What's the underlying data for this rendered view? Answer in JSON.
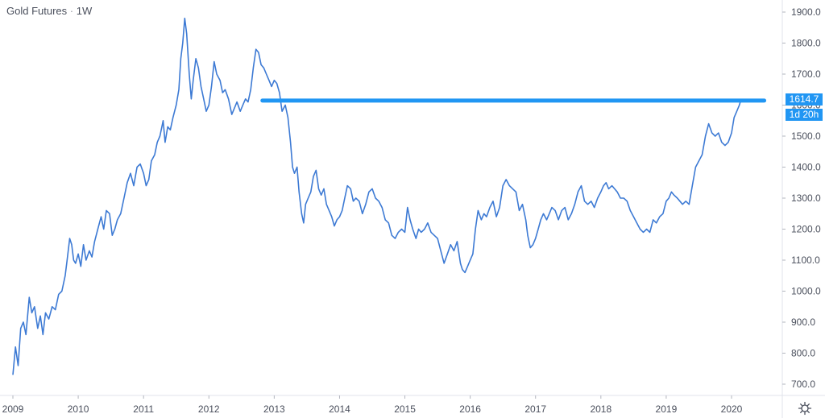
{
  "header": {
    "symbol": "Gold Futures",
    "separator": "·",
    "interval": "1W"
  },
  "colors": {
    "line": "#3d7ad4",
    "hline": "#2196f3",
    "badge": "#2196f3",
    "axis": "#e0e3eb",
    "text": "#4a4f5c"
  },
  "badges": {
    "price": "1614.7",
    "countdown": "1d 20h"
  },
  "settings_icon": "gear-icon",
  "chart_data": {
    "type": "line",
    "title": "Gold Futures · 1W",
    "xlabel": "",
    "ylabel": "",
    "ylim": [
      670,
      1930
    ],
    "xlim": [
      2009.0,
      2020.82
    ],
    "y_ticks": [
      700,
      800,
      900,
      1000,
      1100,
      1200,
      1300,
      1400,
      1500,
      1600,
      1700,
      1800,
      1900
    ],
    "y_tick_labels": [
      "700.0",
      "800.0",
      "900.0",
      "1000.0",
      "1100.0",
      "1200.0",
      "1300.0",
      "1400.0",
      "1500.0",
      "1600.0",
      "1700.0",
      "1800.0",
      "1900.0"
    ],
    "x_ticks": [
      2009,
      2010,
      2011,
      2012,
      2013,
      2014,
      2015,
      2016,
      2017,
      2018,
      2019,
      2020
    ],
    "x_tick_labels": [
      "2009",
      "2010",
      "2011",
      "2012",
      "2013",
      "2014",
      "2015",
      "2016",
      "2017",
      "2018",
      "2019",
      "2020"
    ],
    "grid": false,
    "series": [
      {
        "points": [
          [
            2009.0,
            730
          ],
          [
            2009.04,
            820
          ],
          [
            2009.08,
            760
          ],
          [
            2009.12,
            880
          ],
          [
            2009.16,
            900
          ],
          [
            2009.2,
            860
          ],
          [
            2009.25,
            980
          ],
          [
            2009.29,
            930
          ],
          [
            2009.33,
            950
          ],
          [
            2009.38,
            880
          ],
          [
            2009.42,
            920
          ],
          [
            2009.46,
            860
          ],
          [
            2009.5,
            930
          ],
          [
            2009.55,
            910
          ],
          [
            2009.6,
            950
          ],
          [
            2009.65,
            940
          ],
          [
            2009.7,
            990
          ],
          [
            2009.75,
            1000
          ],
          [
            2009.8,
            1050
          ],
          [
            2009.83,
            1100
          ],
          [
            2009.87,
            1170
          ],
          [
            2009.9,
            1150
          ],
          [
            2009.93,
            1100
          ],
          [
            2009.96,
            1090
          ],
          [
            2010.0,
            1120
          ],
          [
            2010.04,
            1080
          ],
          [
            2010.08,
            1150
          ],
          [
            2010.12,
            1100
          ],
          [
            2010.17,
            1130
          ],
          [
            2010.21,
            1110
          ],
          [
            2010.25,
            1160
          ],
          [
            2010.3,
            1200
          ],
          [
            2010.35,
            1240
          ],
          [
            2010.39,
            1200
          ],
          [
            2010.43,
            1260
          ],
          [
            2010.48,
            1250
          ],
          [
            2010.52,
            1180
          ],
          [
            2010.56,
            1200
          ],
          [
            2010.6,
            1230
          ],
          [
            2010.65,
            1250
          ],
          [
            2010.7,
            1300
          ],
          [
            2010.75,
            1350
          ],
          [
            2010.8,
            1380
          ],
          [
            2010.85,
            1340
          ],
          [
            2010.9,
            1400
          ],
          [
            2010.95,
            1410
          ],
          [
            2011.0,
            1380
          ],
          [
            2011.04,
            1340
          ],
          [
            2011.08,
            1360
          ],
          [
            2011.12,
            1420
          ],
          [
            2011.17,
            1440
          ],
          [
            2011.21,
            1480
          ],
          [
            2011.25,
            1500
          ],
          [
            2011.3,
            1550
          ],
          [
            2011.33,
            1480
          ],
          [
            2011.37,
            1530
          ],
          [
            2011.41,
            1520
          ],
          [
            2011.45,
            1560
          ],
          [
            2011.5,
            1600
          ],
          [
            2011.54,
            1650
          ],
          [
            2011.57,
            1750
          ],
          [
            2011.6,
            1800
          ],
          [
            2011.63,
            1880
          ],
          [
            2011.66,
            1830
          ],
          [
            2011.7,
            1700
          ],
          [
            2011.73,
            1620
          ],
          [
            2011.76,
            1680
          ],
          [
            2011.8,
            1750
          ],
          [
            2011.84,
            1720
          ],
          [
            2011.88,
            1660
          ],
          [
            2011.92,
            1620
          ],
          [
            2011.96,
            1580
          ],
          [
            2012.0,
            1600
          ],
          [
            2012.04,
            1660
          ],
          [
            2012.08,
            1740
          ],
          [
            2012.12,
            1700
          ],
          [
            2012.17,
            1680
          ],
          [
            2012.21,
            1640
          ],
          [
            2012.25,
            1650
          ],
          [
            2012.3,
            1620
          ],
          [
            2012.35,
            1570
          ],
          [
            2012.39,
            1590
          ],
          [
            2012.43,
            1610
          ],
          [
            2012.48,
            1580
          ],
          [
            2012.52,
            1600
          ],
          [
            2012.56,
            1620
          ],
          [
            2012.6,
            1610
          ],
          [
            2012.64,
            1650
          ],
          [
            2012.68,
            1720
          ],
          [
            2012.72,
            1780
          ],
          [
            2012.76,
            1770
          ],
          [
            2012.8,
            1730
          ],
          [
            2012.84,
            1720
          ],
          [
            2012.88,
            1700
          ],
          [
            2012.92,
            1680
          ],
          [
            2012.96,
            1660
          ],
          [
            2013.0,
            1680
          ],
          [
            2013.04,
            1670
          ],
          [
            2013.08,
            1640
          ],
          [
            2013.12,
            1580
          ],
          [
            2013.17,
            1600
          ],
          [
            2013.21,
            1560
          ],
          [
            2013.25,
            1480
          ],
          [
            2013.28,
            1400
          ],
          [
            2013.31,
            1380
          ],
          [
            2013.35,
            1400
          ],
          [
            2013.38,
            1320
          ],
          [
            2013.42,
            1250
          ],
          [
            2013.45,
            1220
          ],
          [
            2013.48,
            1280
          ],
          [
            2013.52,
            1300
          ],
          [
            2013.56,
            1320
          ],
          [
            2013.6,
            1370
          ],
          [
            2013.64,
            1390
          ],
          [
            2013.68,
            1330
          ],
          [
            2013.72,
            1310
          ],
          [
            2013.76,
            1330
          ],
          [
            2013.8,
            1280
          ],
          [
            2013.84,
            1260
          ],
          [
            2013.88,
            1240
          ],
          [
            2013.92,
            1210
          ],
          [
            2013.96,
            1230
          ],
          [
            2014.0,
            1240
          ],
          [
            2014.04,
            1260
          ],
          [
            2014.08,
            1300
          ],
          [
            2014.12,
            1340
          ],
          [
            2014.17,
            1330
          ],
          [
            2014.21,
            1290
          ],
          [
            2014.25,
            1300
          ],
          [
            2014.3,
            1290
          ],
          [
            2014.35,
            1250
          ],
          [
            2014.4,
            1280
          ],
          [
            2014.45,
            1320
          ],
          [
            2014.5,
            1330
          ],
          [
            2014.55,
            1300
          ],
          [
            2014.6,
            1290
          ],
          [
            2014.65,
            1270
          ],
          [
            2014.7,
            1230
          ],
          [
            2014.75,
            1220
          ],
          [
            2014.8,
            1180
          ],
          [
            2014.85,
            1170
          ],
          [
            2014.9,
            1190
          ],
          [
            2014.95,
            1200
          ],
          [
            2015.0,
            1190
          ],
          [
            2015.04,
            1270
          ],
          [
            2015.08,
            1230
          ],
          [
            2015.12,
            1200
          ],
          [
            2015.17,
            1170
          ],
          [
            2015.21,
            1200
          ],
          [
            2015.25,
            1190
          ],
          [
            2015.3,
            1200
          ],
          [
            2015.35,
            1220
          ],
          [
            2015.4,
            1190
          ],
          [
            2015.45,
            1180
          ],
          [
            2015.5,
            1170
          ],
          [
            2015.55,
            1130
          ],
          [
            2015.6,
            1090
          ],
          [
            2015.65,
            1120
          ],
          [
            2015.7,
            1150
          ],
          [
            2015.75,
            1130
          ],
          [
            2015.8,
            1160
          ],
          [
            2015.85,
            1090
          ],
          [
            2015.88,
            1070
          ],
          [
            2015.92,
            1060
          ],
          [
            2015.96,
            1080
          ],
          [
            2016.0,
            1100
          ],
          [
            2016.04,
            1120
          ],
          [
            2016.08,
            1200
          ],
          [
            2016.12,
            1260
          ],
          [
            2016.17,
            1230
          ],
          [
            2016.21,
            1250
          ],
          [
            2016.25,
            1240
          ],
          [
            2016.3,
            1270
          ],
          [
            2016.35,
            1290
          ],
          [
            2016.4,
            1240
          ],
          [
            2016.45,
            1270
          ],
          [
            2016.5,
            1340
          ],
          [
            2016.55,
            1360
          ],
          [
            2016.6,
            1340
          ],
          [
            2016.65,
            1330
          ],
          [
            2016.7,
            1320
          ],
          [
            2016.75,
            1260
          ],
          [
            2016.8,
            1280
          ],
          [
            2016.85,
            1230
          ],
          [
            2016.88,
            1180
          ],
          [
            2016.92,
            1140
          ],
          [
            2016.96,
            1150
          ],
          [
            2017.0,
            1170
          ],
          [
            2017.04,
            1200
          ],
          [
            2017.08,
            1230
          ],
          [
            2017.12,
            1250
          ],
          [
            2017.17,
            1230
          ],
          [
            2017.21,
            1250
          ],
          [
            2017.25,
            1270
          ],
          [
            2017.3,
            1260
          ],
          [
            2017.35,
            1230
          ],
          [
            2017.4,
            1260
          ],
          [
            2017.45,
            1270
          ],
          [
            2017.5,
            1230
          ],
          [
            2017.55,
            1250
          ],
          [
            2017.6,
            1280
          ],
          [
            2017.65,
            1320
          ],
          [
            2017.7,
            1340
          ],
          [
            2017.75,
            1290
          ],
          [
            2017.8,
            1280
          ],
          [
            2017.85,
            1290
          ],
          [
            2017.9,
            1270
          ],
          [
            2017.95,
            1300
          ],
          [
            2018.0,
            1320
          ],
          [
            2018.04,
            1340
          ],
          [
            2018.08,
            1350
          ],
          [
            2018.12,
            1330
          ],
          [
            2018.17,
            1340
          ],
          [
            2018.21,
            1330
          ],
          [
            2018.25,
            1320
          ],
          [
            2018.3,
            1300
          ],
          [
            2018.35,
            1300
          ],
          [
            2018.4,
            1290
          ],
          [
            2018.45,
            1260
          ],
          [
            2018.5,
            1240
          ],
          [
            2018.55,
            1220
          ],
          [
            2018.6,
            1200
          ],
          [
            2018.65,
            1190
          ],
          [
            2018.7,
            1200
          ],
          [
            2018.75,
            1190
          ],
          [
            2018.8,
            1230
          ],
          [
            2018.85,
            1220
          ],
          [
            2018.9,
            1240
          ],
          [
            2018.95,
            1250
          ],
          [
            2019.0,
            1290
          ],
          [
            2019.04,
            1300
          ],
          [
            2019.08,
            1320
          ],
          [
            2019.12,
            1310
          ],
          [
            2019.17,
            1300
          ],
          [
            2019.21,
            1290
          ],
          [
            2019.25,
            1280
          ],
          [
            2019.3,
            1290
          ],
          [
            2019.35,
            1280
          ],
          [
            2019.4,
            1340
          ],
          [
            2019.45,
            1400
          ],
          [
            2019.5,
            1420
          ],
          [
            2019.55,
            1440
          ],
          [
            2019.6,
            1500
          ],
          [
            2019.65,
            1540
          ],
          [
            2019.7,
            1510
          ],
          [
            2019.75,
            1500
          ],
          [
            2019.8,
            1510
          ],
          [
            2019.85,
            1480
          ],
          [
            2019.9,
            1470
          ],
          [
            2019.95,
            1480
          ],
          [
            2020.0,
            1510
          ],
          [
            2020.04,
            1560
          ],
          [
            2020.08,
            1580
          ],
          [
            2020.12,
            1600
          ],
          [
            2020.14,
            1614.7
          ]
        ]
      }
    ],
    "horizontal_line": {
      "y": 1614.7,
      "x_start": 2012.82,
      "x_end": 2020.5
    }
  }
}
